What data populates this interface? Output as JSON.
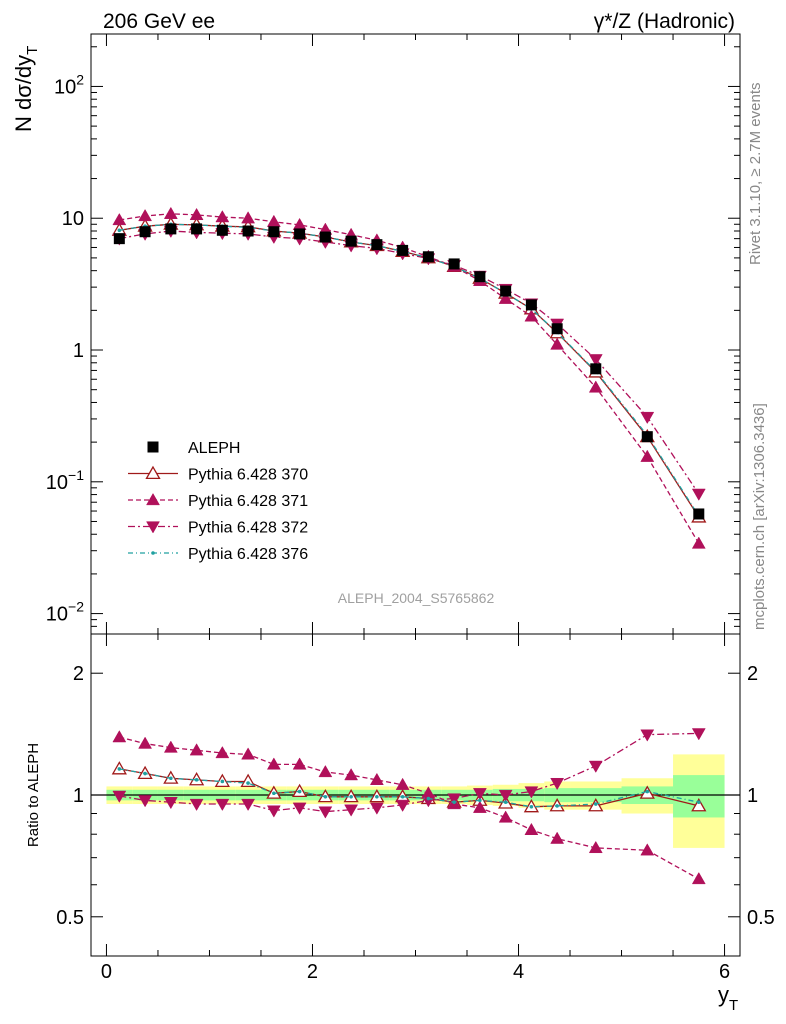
{
  "header": {
    "left": "206 GeV ee",
    "right": "γ*/Z (Hadronic)"
  },
  "side_text": {
    "rivet": "Rivet 3.1.10, ≥ 2.7M events",
    "mcplots": "mcplots.cern.ch [arXiv:1306.3436]"
  },
  "analysis_label": "ALEPH_2004_S5765862",
  "colors": {
    "data": "#000000",
    "p370": "#a01a1a",
    "p371": "#b0105a",
    "p372": "#b0105a",
    "p376": "#20a0a0",
    "band_inner": "#99ff99",
    "band_outer": "#ffff99"
  },
  "chart_data": [
    {
      "type": "line",
      "panel": "main",
      "ylabel": "N dσ/dy",
      "ylabel_sub": "T",
      "xlabel": "y",
      "xlabel_sub": "T",
      "yscale": "log",
      "xlim": [
        -0.15,
        6.15
      ],
      "ylim": [
        0.007,
        250
      ],
      "ytick_labels": [
        {
          "value": 0.01,
          "base": "10",
          "exp": "−2"
        },
        {
          "value": 0.1,
          "base": "10",
          "exp": "−1"
        },
        {
          "value": 1,
          "text": "1"
        },
        {
          "value": 10,
          "text": "10"
        },
        {
          "value": 100,
          "base": "10",
          "exp": "2"
        }
      ],
      "legend_position": "lower-left",
      "x": [
        0.125,
        0.375,
        0.625,
        0.875,
        1.125,
        1.375,
        1.625,
        1.875,
        2.125,
        2.375,
        2.625,
        2.875,
        3.125,
        3.375,
        3.625,
        3.875,
        4.125,
        4.375,
        4.75,
        5.25,
        5.75
      ],
      "series": [
        {
          "name": "ALEPH",
          "style": "data",
          "values": [
            7.0,
            7.9,
            8.3,
            8.3,
            8.1,
            8.0,
            7.9,
            7.6,
            7.2,
            6.7,
            6.3,
            5.7,
            5.1,
            4.5,
            3.6,
            2.8,
            2.2,
            1.45,
            0.72,
            0.22,
            0.057
          ]
        },
        {
          "name": "Pythia 6.428 370",
          "style": "p370",
          "values": [
            8.1,
            8.7,
            9.0,
            8.9,
            8.7,
            8.6,
            8.0,
            7.7,
            7.2,
            6.6,
            6.2,
            5.6,
            5.0,
            4.3,
            3.5,
            2.7,
            2.05,
            1.35,
            0.68,
            0.22,
            0.054
          ]
        },
        {
          "name": "Pythia 6.428 371",
          "style": "p371",
          "values": [
            9.7,
            10.4,
            10.8,
            10.6,
            10.2,
            10.0,
            9.4,
            8.9,
            8.2,
            7.5,
            6.8,
            6.0,
            5.1,
            4.3,
            3.35,
            2.45,
            1.8,
            1.1,
            0.52,
            0.155,
            0.034
          ]
        },
        {
          "name": "Pythia 6.428 372",
          "style": "p372",
          "values": [
            7.0,
            7.6,
            8.0,
            7.8,
            7.7,
            7.6,
            7.2,
            7.0,
            6.6,
            6.2,
            5.9,
            5.4,
            4.95,
            4.4,
            3.65,
            2.9,
            2.25,
            1.58,
            0.85,
            0.31,
            0.081
          ]
        },
        {
          "name": "Pythia 6.428 376",
          "style": "p376",
          "values": [
            8.1,
            8.7,
            9.0,
            8.9,
            8.7,
            8.5,
            8.0,
            7.7,
            7.2,
            6.6,
            6.2,
            5.6,
            5.0,
            4.3,
            3.5,
            2.7,
            2.05,
            1.36,
            0.69,
            0.225,
            0.055
          ]
        }
      ]
    },
    {
      "type": "line",
      "panel": "ratio",
      "ylabel": "Ratio to ALEPH",
      "xlabel": "y",
      "xlabel_sub": "T",
      "yscale": "log",
      "xlim": [
        -0.15,
        6.15
      ],
      "ylim": [
        0.4,
        2.5
      ],
      "ytick_labels": [
        {
          "value": 0.5,
          "text": "0.5"
        },
        {
          "value": 1,
          "text": "1"
        },
        {
          "value": 2,
          "text": "2"
        }
      ],
      "xtick_labels": [
        {
          "value": 0,
          "text": "0"
        },
        {
          "value": 2,
          "text": "2"
        },
        {
          "value": 4,
          "text": "4"
        },
        {
          "value": 6,
          "text": "6"
        }
      ],
      "bin_edges": [
        0,
        0.25,
        0.5,
        0.75,
        1.0,
        1.25,
        1.5,
        1.75,
        2.0,
        2.25,
        2.5,
        2.75,
        3.0,
        3.25,
        3.5,
        3.75,
        4.0,
        4.25,
        4.5,
        5.0,
        5.5,
        6.0
      ],
      "band_inner": [
        0.03,
        0.03,
        0.03,
        0.03,
        0.03,
        0.03,
        0.03,
        0.03,
        0.03,
        0.03,
        0.03,
        0.03,
        0.03,
        0.03,
        0.03,
        0.035,
        0.035,
        0.04,
        0.04,
        0.05,
        0.12
      ],
      "band_outer": [
        0.05,
        0.05,
        0.05,
        0.05,
        0.05,
        0.05,
        0.05,
        0.05,
        0.05,
        0.05,
        0.05,
        0.05,
        0.05,
        0.05,
        0.055,
        0.06,
        0.07,
        0.08,
        0.08,
        0.1,
        0.26
      ],
      "x": [
        0.125,
        0.375,
        0.625,
        0.875,
        1.125,
        1.375,
        1.625,
        1.875,
        2.125,
        2.375,
        2.625,
        2.875,
        3.125,
        3.375,
        3.625,
        3.875,
        4.125,
        4.375,
        4.75,
        5.25,
        5.75
      ],
      "series": [
        {
          "name": "Pythia 6.428 370",
          "style": "p370",
          "values": [
            1.16,
            1.13,
            1.1,
            1.09,
            1.08,
            1.08,
            1.01,
            1.02,
            0.99,
            0.99,
            0.99,
            0.99,
            0.98,
            0.96,
            0.97,
            0.955,
            0.935,
            0.94,
            0.94,
            1.01,
            0.94
          ]
        },
        {
          "name": "Pythia 6.428 371",
          "style": "p371",
          "values": [
            1.39,
            1.34,
            1.31,
            1.29,
            1.27,
            1.26,
            1.19,
            1.19,
            1.14,
            1.12,
            1.09,
            1.06,
            1.01,
            0.95,
            0.93,
            0.88,
            0.82,
            0.78,
            0.74,
            0.73,
            0.62
          ]
        },
        {
          "name": "Pythia 6.428 372",
          "style": "p372",
          "values": [
            0.995,
            0.97,
            0.96,
            0.95,
            0.95,
            0.95,
            0.915,
            0.93,
            0.91,
            0.92,
            0.93,
            0.945,
            0.97,
            0.98,
            1.01,
            1.0,
            1.02,
            1.07,
            1.18,
            1.41,
            1.42
          ]
        },
        {
          "name": "Pythia 6.428 376",
          "style": "p376",
          "values": [
            1.16,
            1.13,
            1.1,
            1.09,
            1.08,
            1.07,
            1.01,
            1.02,
            0.99,
            0.99,
            0.99,
            0.99,
            0.98,
            0.96,
            0.97,
            0.96,
            0.935,
            0.94,
            0.95,
            1.02,
            0.96
          ]
        }
      ]
    }
  ]
}
